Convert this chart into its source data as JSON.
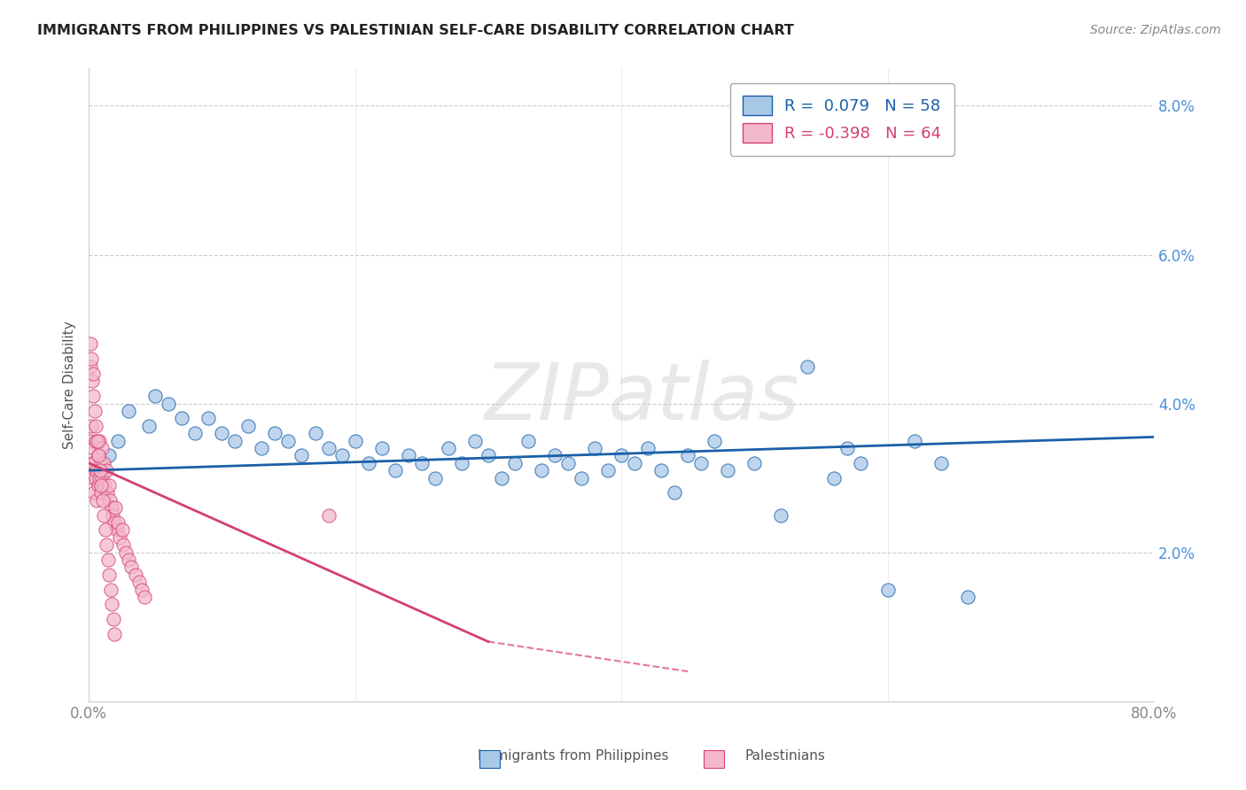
{
  "title": "IMMIGRANTS FROM PHILIPPINES VS PALESTINIAN SELF-CARE DISABILITY CORRELATION CHART",
  "source": "Source: ZipAtlas.com",
  "ylabel": "Self-Care Disability",
  "legend_label1": "Immigrants from Philippines",
  "legend_label2": "Palestinians",
  "r1": 0.079,
  "n1": 58,
  "r2": -0.398,
  "n2": 64,
  "watermark": "ZIPatlas",
  "blue_color": "#a8c8e8",
  "pink_color": "#f4b8cc",
  "blue_line_color": "#1a5fa8",
  "pink_line_color": "#d44070",
  "blue_scatter_x": [
    1.5,
    2.2,
    3.0,
    4.5,
    5.0,
    6.0,
    7.0,
    8.0,
    9.0,
    10.0,
    11.0,
    12.0,
    13.0,
    14.0,
    15.0,
    16.0,
    17.0,
    18.0,
    19.0,
    20.0,
    21.0,
    22.0,
    23.0,
    24.0,
    25.0,
    26.0,
    27.0,
    28.0,
    29.0,
    30.0,
    31.0,
    32.0,
    33.0,
    34.0,
    35.0,
    36.0,
    37.0,
    38.0,
    39.0,
    40.0,
    41.0,
    42.0,
    43.0,
    44.0,
    45.0,
    46.0,
    47.0,
    48.0,
    50.0,
    52.0,
    54.0,
    56.0,
    57.0,
    58.0,
    60.0,
    62.0,
    64.0,
    66.0
  ],
  "blue_scatter_y": [
    3.3,
    3.5,
    3.9,
    3.7,
    4.1,
    4.0,
    3.8,
    3.6,
    3.8,
    3.6,
    3.5,
    3.7,
    3.4,
    3.6,
    3.5,
    3.3,
    3.6,
    3.4,
    3.3,
    3.5,
    3.2,
    3.4,
    3.1,
    3.3,
    3.2,
    3.0,
    3.4,
    3.2,
    3.5,
    3.3,
    3.0,
    3.2,
    3.5,
    3.1,
    3.3,
    3.2,
    3.0,
    3.4,
    3.1,
    3.3,
    3.2,
    3.4,
    3.1,
    2.8,
    3.3,
    3.2,
    3.5,
    3.1,
    3.2,
    2.5,
    4.5,
    3.0,
    3.4,
    3.2,
    1.5,
    3.5,
    3.2,
    1.4
  ],
  "pink_scatter_x": [
    0.1,
    0.2,
    0.2,
    0.3,
    0.3,
    0.4,
    0.4,
    0.5,
    0.5,
    0.6,
    0.6,
    0.7,
    0.7,
    0.8,
    0.8,
    0.9,
    0.9,
    1.0,
    1.0,
    1.1,
    1.2,
    1.3,
    1.4,
    1.5,
    1.6,
    1.7,
    1.8,
    1.9,
    2.0,
    2.1,
    2.2,
    2.3,
    2.5,
    2.6,
    2.8,
    3.0,
    3.2,
    3.5,
    3.8,
    4.0,
    4.2,
    0.15,
    0.25,
    0.35,
    0.45,
    0.55,
    0.65,
    0.75,
    0.85,
    0.95,
    1.05,
    1.15,
    1.25,
    1.35,
    1.45,
    1.55,
    1.65,
    1.75,
    1.85,
    1.95,
    0.1,
    0.2,
    0.3,
    18.0
  ],
  "pink_scatter_y": [
    3.5,
    3.2,
    3.7,
    3.4,
    3.0,
    3.2,
    2.8,
    3.5,
    3.0,
    3.1,
    2.7,
    3.3,
    2.9,
    3.0,
    3.5,
    3.2,
    2.8,
    3.4,
    3.0,
    3.2,
    2.9,
    3.1,
    2.8,
    2.9,
    2.7,
    2.6,
    2.5,
    2.4,
    2.6,
    2.3,
    2.4,
    2.2,
    2.3,
    2.1,
    2.0,
    1.9,
    1.8,
    1.7,
    1.6,
    1.5,
    1.4,
    4.5,
    4.3,
    4.1,
    3.9,
    3.7,
    3.5,
    3.3,
    3.1,
    2.9,
    2.7,
    2.5,
    2.3,
    2.1,
    1.9,
    1.7,
    1.5,
    1.3,
    1.1,
    0.9,
    4.8,
    4.6,
    4.4,
    2.5
  ],
  "blue_line_x0": 0,
  "blue_line_x1": 80,
  "blue_line_y0": 3.1,
  "blue_line_y1": 3.55,
  "pink_line_x0": 0,
  "pink_line_x1": 30,
  "pink_line_y0": 3.2,
  "pink_line_y1": 0.8,
  "pink_dash_x0": 30,
  "pink_dash_x1": 45,
  "pink_dash_y0": 0.8,
  "pink_dash_y1": 0.4,
  "xlim": [
    0,
    80
  ],
  "ylim": [
    0,
    8.5
  ],
  "ytick_vals": [
    2.0,
    4.0,
    6.0,
    8.0
  ],
  "ytick_labels": [
    "2.0%",
    "4.0%",
    "6.0%",
    "8.0%"
  ],
  "xtick_vals": [
    0,
    80
  ],
  "xtick_labels": [
    "0.0%",
    "80.0%"
  ],
  "background_color": "#ffffff",
  "grid_color": "#cccccc",
  "ytick_color": "#4a90d9",
  "xtick_color": "#888888"
}
